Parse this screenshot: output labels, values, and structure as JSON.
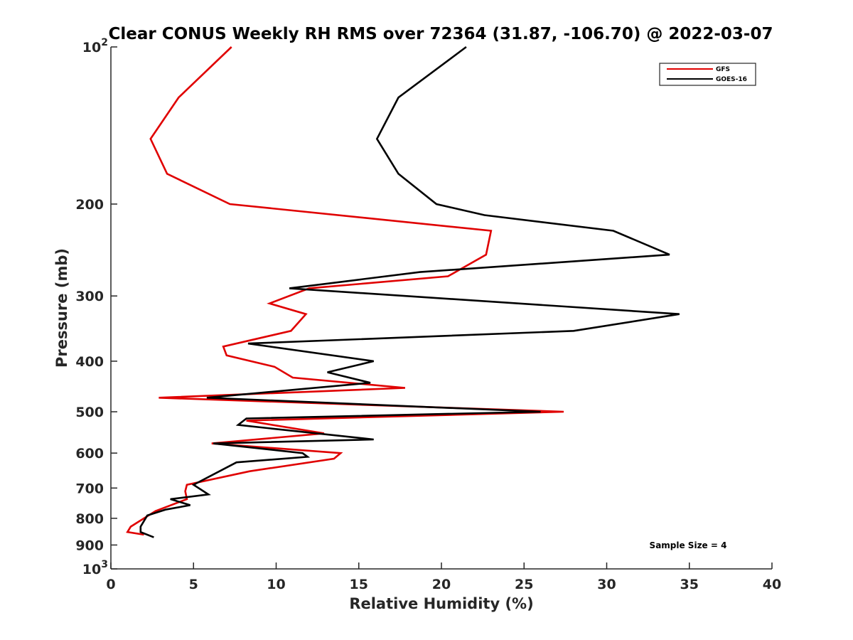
{
  "chart_data": {
    "type": "line",
    "title": "Clear CONUS Weekly RH RMS over 72364 (31.87, -106.70) @ 2022-03-07",
    "xlabel": "Relative Humidity (%)",
    "ylabel": "Pressure (mb)",
    "xlim": [
      0,
      40
    ],
    "ylim": [
      100,
      1000
    ],
    "y_scale": "log",
    "y_reversed": true,
    "grid": false,
    "legend_position": "top-right",
    "annotation": "Sample Size = 4",
    "x_ticks": [
      "0",
      "5",
      "10",
      "15",
      "20",
      "25",
      "30",
      "35",
      "40"
    ],
    "y_ticks": [
      {
        "value": 100,
        "base": "10",
        "exp": "2"
      },
      {
        "value": 200,
        "label": "200"
      },
      {
        "value": 300,
        "label": "300"
      },
      {
        "value": 400,
        "label": "400"
      },
      {
        "value": 500,
        "label": "500"
      },
      {
        "value": 600,
        "label": "600"
      },
      {
        "value": 700,
        "label": "700"
      },
      {
        "value": 800,
        "label": "800"
      },
      {
        "value": 900,
        "label": "900"
      },
      {
        "value": 1000,
        "base": "10",
        "exp": "3"
      }
    ],
    "series": [
      {
        "name": "GFS",
        "color": "#e00000",
        "points": [
          [
            7.3,
            100
          ],
          [
            4.1,
            125
          ],
          [
            2.4,
            150
          ],
          [
            3.4,
            175
          ],
          [
            7.2,
            200
          ],
          [
            23.0,
            225
          ],
          [
            22.7,
            250
          ],
          [
            20.4,
            275
          ],
          [
            12.0,
            290
          ],
          [
            9.6,
            310
          ],
          [
            11.8,
            325
          ],
          [
            10.9,
            350
          ],
          [
            6.8,
            375
          ],
          [
            7.0,
            390
          ],
          [
            9.9,
            410
          ],
          [
            11.0,
            430
          ],
          [
            17.8,
            450
          ],
          [
            2.9,
            470
          ],
          [
            27.4,
            500
          ],
          [
            8.2,
            520
          ],
          [
            12.9,
            550
          ],
          [
            6.1,
            575
          ],
          [
            13.9,
            600
          ],
          [
            13.5,
            615
          ],
          [
            8.4,
            650
          ],
          [
            4.6,
            690
          ],
          [
            4.5,
            710
          ],
          [
            4.6,
            735
          ],
          [
            2.7,
            775
          ],
          [
            1.2,
            830
          ],
          [
            1.0,
            850
          ],
          [
            2.0,
            860
          ]
        ]
      },
      {
        "name": "GOES-16",
        "color": "#000000",
        "points": [
          [
            21.5,
            100
          ],
          [
            17.4,
            125
          ],
          [
            16.1,
            150
          ],
          [
            17.4,
            175
          ],
          [
            19.7,
            200
          ],
          [
            22.6,
            210
          ],
          [
            30.4,
            225
          ],
          [
            33.8,
            250
          ],
          [
            18.7,
            270
          ],
          [
            10.8,
            290
          ],
          [
            34.4,
            325
          ],
          [
            28.0,
            350
          ],
          [
            8.3,
            370
          ],
          [
            15.9,
            400
          ],
          [
            13.1,
            420
          ],
          [
            15.7,
            440
          ],
          [
            5.8,
            470
          ],
          [
            26.0,
            500
          ],
          [
            8.2,
            515
          ],
          [
            7.7,
            530
          ],
          [
            15.9,
            565
          ],
          [
            6.2,
            575
          ],
          [
            11.6,
            600
          ],
          [
            11.9,
            610
          ],
          [
            7.6,
            625
          ],
          [
            5.0,
            690
          ],
          [
            5.9,
            720
          ],
          [
            3.6,
            735
          ],
          [
            4.8,
            755
          ],
          [
            3.3,
            770
          ],
          [
            2.2,
            790
          ],
          [
            1.8,
            830
          ],
          [
            1.8,
            850
          ],
          [
            2.6,
            870
          ]
        ]
      }
    ]
  }
}
